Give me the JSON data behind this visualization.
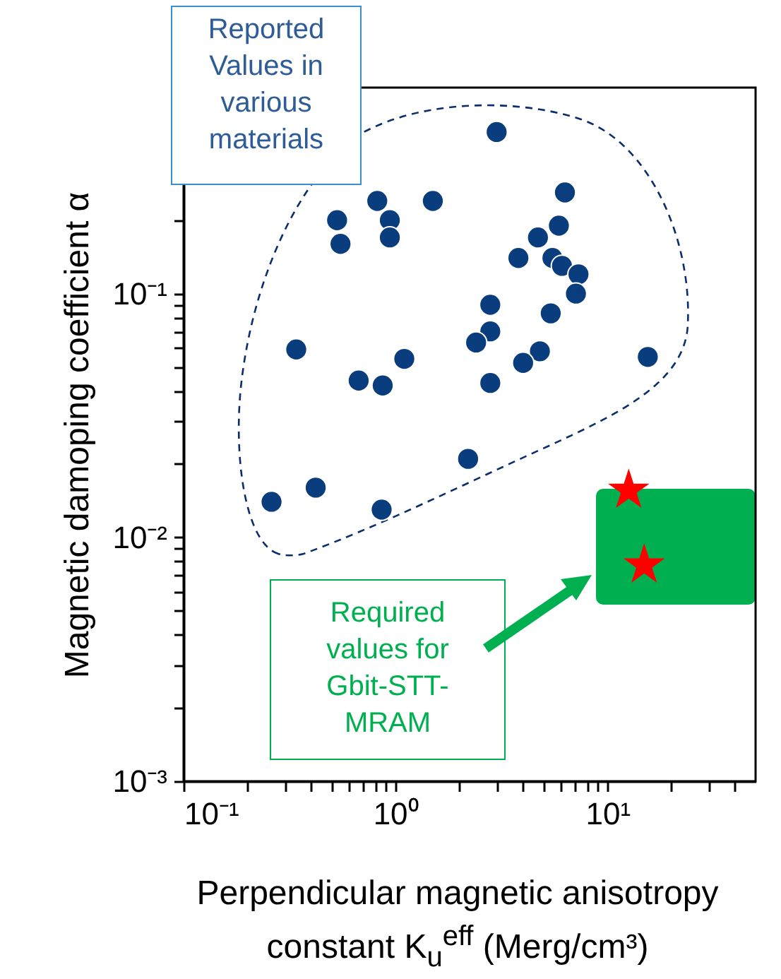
{
  "chart_data": {
    "type": "scatter",
    "xlabel": "Perpendicular magnetic anisotropy constant K$_{u}$$^{eff}$ (Merg/cm³)",
    "ylabel": "Magnetic damoping coefficient α",
    "log": "xy",
    "grid": false,
    "xlim": [
      0.1,
      50
    ],
    "ylim": [
      0.001,
      0.7
    ],
    "xticks": [
      {
        "value": 0.1,
        "label": "10⁻¹"
      },
      {
        "value": 0.2,
        "label": null
      },
      {
        "value": 0.3,
        "label": null
      },
      {
        "value": 0.4,
        "label": null
      },
      {
        "value": 0.5,
        "label": null
      },
      {
        "value": 0.6,
        "label": null
      },
      {
        "value": 0.7,
        "label": null
      },
      {
        "value": 0.8,
        "label": null
      },
      {
        "value": 0.9,
        "label": null
      },
      {
        "value": 1,
        "label": "10⁰"
      },
      {
        "value": 2,
        "label": null
      },
      {
        "value": 3,
        "label": null
      },
      {
        "value": 4,
        "label": null
      },
      {
        "value": 5,
        "label": null
      },
      {
        "value": 6,
        "label": null
      },
      {
        "value": 7,
        "label": null
      },
      {
        "value": 8,
        "label": null
      },
      {
        "value": 9,
        "label": null
      },
      {
        "value": 10,
        "label": "10¹"
      },
      {
        "value": 20,
        "label": null
      },
      {
        "value": 30,
        "label": null
      },
      {
        "value": 40,
        "label": null
      }
    ],
    "yticks": [
      {
        "value": 0.001,
        "label": "10⁻³"
      },
      {
        "value": 0.002,
        "label": null
      },
      {
        "value": 0.003,
        "label": null
      },
      {
        "value": 0.004,
        "label": null
      },
      {
        "value": 0.005,
        "label": null
      },
      {
        "value": 0.006,
        "label": null
      },
      {
        "value": 0.007,
        "label": null
      },
      {
        "value": 0.008,
        "label": null
      },
      {
        "value": 0.009,
        "label": null
      },
      {
        "value": 0.01,
        "label": "10⁻²"
      },
      {
        "value": 0.02,
        "label": null
      },
      {
        "value": 0.03,
        "label": null
      },
      {
        "value": 0.04,
        "label": null
      },
      {
        "value": 0.05,
        "label": null
      },
      {
        "value": 0.06,
        "label": null
      },
      {
        "value": 0.07,
        "label": null
      },
      {
        "value": 0.08,
        "label": null
      },
      {
        "value": 0.09,
        "label": null
      },
      {
        "value": 0.1,
        "label": "10⁻¹"
      },
      {
        "value": 0.2,
        "label": null
      },
      {
        "value": 0.3,
        "label": null
      },
      {
        "value": 0.4,
        "label": null
      },
      {
        "value": 0.5,
        "label": null
      },
      {
        "value": 0.6,
        "label": null
      }
    ],
    "annotations": [
      "Reported Values in various materials",
      "Required values for Gbit-STT-MRAM"
    ],
    "series": [
      {
        "color": "#0a3d7e",
        "marker": "circle",
        "x": [
          3.0,
          0.82,
          1.5,
          6.3,
          0.53,
          0.94,
          0.55,
          0.94,
          5.9,
          4.7,
          3.8,
          5.5,
          6.1,
          7.3,
          7.1,
          2.8,
          5.4,
          2.8,
          2.4,
          0.34,
          4.8,
          15.5,
          1.1,
          4.0,
          0.67,
          0.87,
          2.8,
          2.2,
          0.42,
          0.26,
          0.86
        ],
        "values": [
          0.46,
          0.24,
          0.24,
          0.26,
          0.2,
          0.2,
          0.16,
          0.17,
          0.19,
          0.17,
          0.14,
          0.14,
          0.13,
          0.12,
          0.1,
          0.09,
          0.083,
          0.07,
          0.063,
          0.059,
          0.058,
          0.055,
          0.054,
          0.052,
          0.044,
          0.042,
          0.043,
          0.021,
          0.016,
          0.014,
          0.013
        ]
      },
      {
        "color": "#ff0000",
        "marker": "star",
        "x": [
          12.6,
          14.9
        ],
        "values": [
          0.0156,
          0.0077
        ]
      }
    ]
  }
}
